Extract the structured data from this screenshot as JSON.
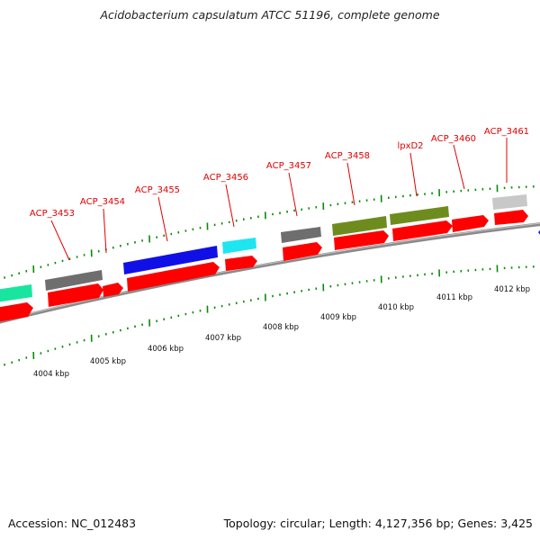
{
  "title": "Acidobacterium capsulatum ATCC 51196, complete genome",
  "footer": {
    "accession": "Accession: NC_012483",
    "summary": "Topology: circular; Length: 4,127,356 bp; Genes: 3,425"
  },
  "colors": {
    "cds": "#ff0000",
    "backbone": "#8c8c8c",
    "tick": "#0a8a0a",
    "label": "#e00000"
  },
  "kbp_labels": [
    "4004 kbp",
    "4005 kbp",
    "4006 kbp",
    "4007 kbp",
    "4008 kbp",
    "4009 kbp",
    "4010 kbp",
    "4011 kbp",
    "4012 kbp"
  ],
  "gene_labels": [
    "ACP_3453",
    "ACP_3454",
    "ACP_3455",
    "ACP_3456",
    "ACP_3457",
    "ACP_3458",
    "lpxD2",
    "ACP_3460",
    "ACP_3461"
  ],
  "feature_colors": [
    "#18e6a0",
    "#6e6e6e",
    "#1010e6",
    "#1ee6f0",
    "#6e6e6e",
    "#6e8c1e",
    "#6e8c1e",
    "#c8c8c8",
    "#1010e6"
  ]
}
